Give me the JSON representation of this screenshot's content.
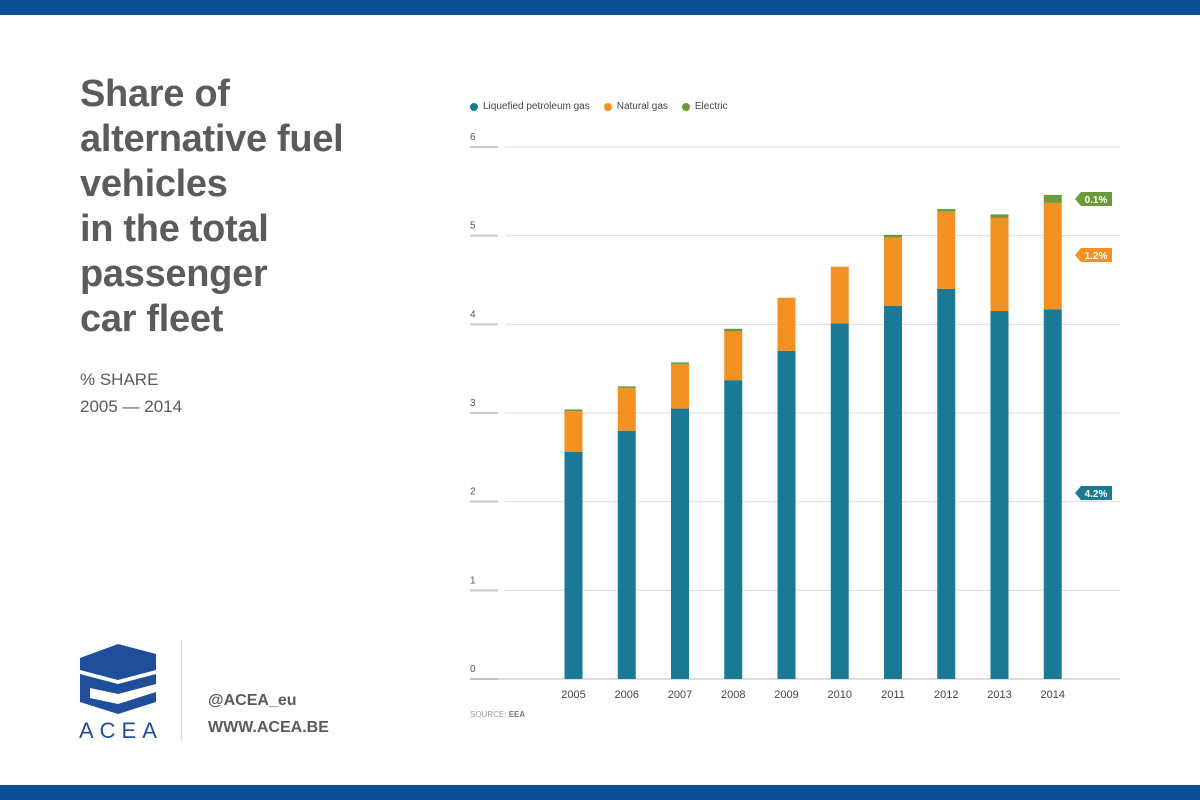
{
  "colors": {
    "band": "#0b4f96",
    "lpg": "#1a7a95",
    "natural_gas": "#f39222",
    "electric": "#6a9a3a",
    "text": "#5b5b5b"
  },
  "header": {
    "title": "Share of\nalternative fuel\nvehicles\nin the total\npassenger\ncar fleet",
    "subtitle_line1": "% SHARE",
    "subtitle_line2": "2005 — 2014"
  },
  "footer": {
    "logo_text": "ACEA",
    "social": "@ACEA_eu",
    "website": "WWW.ACEA.BE",
    "source_label": "SOURCE:",
    "source_name": "EEA"
  },
  "chart_data": {
    "type": "bar",
    "stacked": true,
    "categories": [
      "2005",
      "2006",
      "2007",
      "2008",
      "2009",
      "2010",
      "2011",
      "2012",
      "2013",
      "2014"
    ],
    "series": [
      {
        "name": "Liquefied petroleum gas",
        "color": "#1a7a95",
        "values": [
          2.56,
          2.8,
          3.05,
          3.37,
          3.7,
          4.01,
          4.21,
          4.4,
          4.15,
          4.17
        ]
      },
      {
        "name": "Natural gas",
        "color": "#f39222",
        "values": [
          0.46,
          0.48,
          0.5,
          0.55,
          0.6,
          0.64,
          0.77,
          0.87,
          1.05,
          1.2
        ]
      },
      {
        "name": "Electric",
        "color": "#6a9a3a",
        "values": [
          0.02,
          0.02,
          0.02,
          0.03,
          0.0,
          0.0,
          0.03,
          0.03,
          0.04,
          0.09
        ]
      }
    ],
    "ylim": [
      0,
      6
    ],
    "yticks": [
      "0",
      "1",
      "2",
      "3",
      "4",
      "5",
      "6"
    ],
    "grid": true,
    "legend": "top-left",
    "annotations": [
      {
        "series": "Electric",
        "text": "0.1%",
        "color": "#6a9a3a"
      },
      {
        "series": "Natural gas",
        "text": "1.2%",
        "color": "#f39222"
      },
      {
        "series": "Liquefied petroleum gas",
        "text": "4.2%",
        "color": "#1a7a95"
      }
    ]
  }
}
